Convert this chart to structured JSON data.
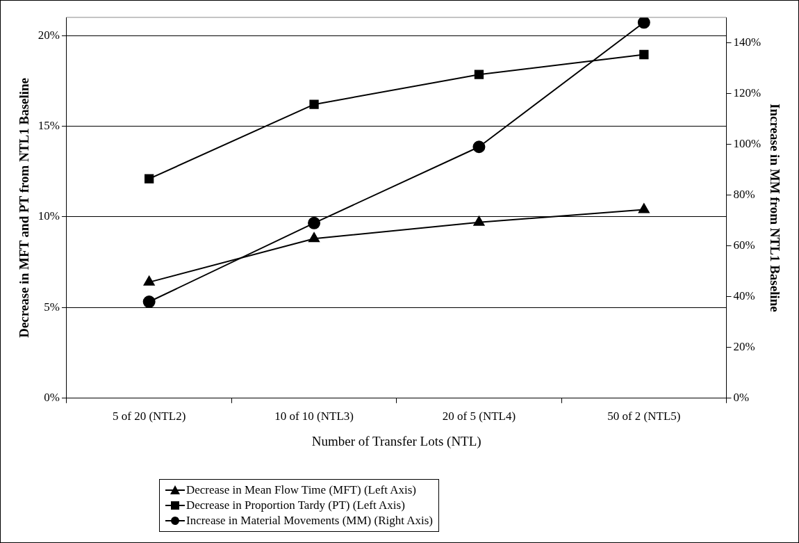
{
  "chart_data": {
    "type": "line",
    "xlabel": "Number of Transfer Lots (NTL)",
    "ylabel": "Decrease in MFT and PT from NTL1 Baseline",
    "y2label": "Increase in MM from NTL1 Baseline",
    "categories": [
      "5 of 20 (NTL2)",
      "10 of 10 (NTL3)",
      "20 of 5 (NTL4)",
      "50 of 2 (NTL5)"
    ],
    "series": [
      {
        "name": "Decrease in Mean Flow Time (MFT) (Left Axis)",
        "color": "#000000",
        "marker": "triangle",
        "values": [
          6.4,
          8.8,
          9.7,
          10.4
        ]
      },
      {
        "name": "Decrease in Proportion Tardy (PT) (Left Axis)",
        "color": "#000000",
        "marker": "square",
        "values": [
          12.1,
          16.2,
          17.85,
          18.95
        ]
      },
      {
        "name": "Increase in Material Movements (MM) (Right Axis)",
        "color": "#000000",
        "marker": "circle",
        "axis": "y2",
        "values": [
          38,
          69,
          99,
          148
        ]
      }
    ],
    "ylim": [
      0,
      21
    ],
    "yticks": [
      {
        "value": 0,
        "label": "0%"
      },
      {
        "value": 5,
        "label": "5%"
      },
      {
        "value": 10,
        "label": "10%"
      },
      {
        "value": 15,
        "label": "15%"
      },
      {
        "value": 20,
        "label": "20%"
      }
    ],
    "y2lim": [
      0,
      150
    ],
    "y2ticks": [
      {
        "value": 0,
        "label": "0%"
      },
      {
        "value": 20,
        "label": "20%"
      },
      {
        "value": 40,
        "label": "40%"
      },
      {
        "value": 60,
        "label": "60%"
      },
      {
        "value": 80,
        "label": "80%"
      },
      {
        "value": 100,
        "label": "100%"
      },
      {
        "value": 120,
        "label": "120%"
      },
      {
        "value": 140,
        "label": "140%"
      }
    ],
    "grid": "y",
    "legend": "bottom",
    "line_style": "solid"
  }
}
